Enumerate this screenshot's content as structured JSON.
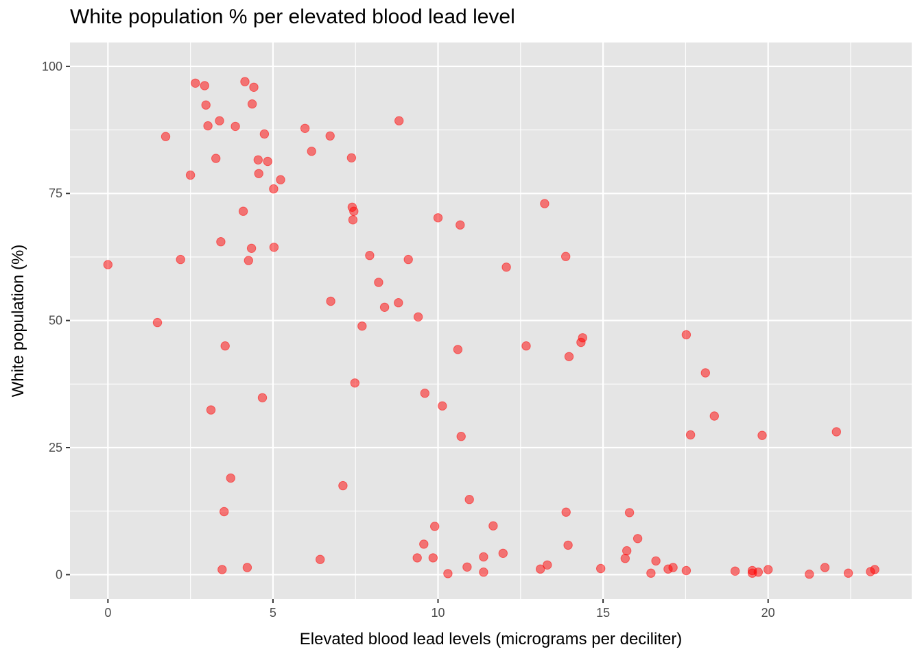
{
  "chart_data": {
    "type": "scatter",
    "title": "White population % per elevated blood lead level",
    "xlabel": "Elevated blood lead levels (micrograms per deciliter)",
    "ylabel": "White population (%)",
    "xlim": [
      -1.15,
      24.35
    ],
    "ylim": [
      -4.8,
      104.7
    ],
    "xticks": [
      0,
      5,
      10,
      15,
      20
    ],
    "yticks": [
      0,
      25,
      50,
      75,
      100
    ],
    "grid": true,
    "point_color": "#ff0000",
    "point_opacity": 0.5,
    "background": "#e5e5e5",
    "points": [
      [
        0.0,
        61.0
      ],
      [
        1.5,
        49.6
      ],
      [
        1.75,
        86.2
      ],
      [
        2.2,
        62.0
      ],
      [
        2.5,
        78.6
      ],
      [
        2.65,
        96.7
      ],
      [
        2.93,
        96.2
      ],
      [
        2.97,
        92.4
      ],
      [
        3.03,
        88.3
      ],
      [
        3.12,
        32.4
      ],
      [
        3.27,
        81.9
      ],
      [
        3.38,
        89.3
      ],
      [
        3.42,
        65.5
      ],
      [
        3.46,
        1.0
      ],
      [
        3.52,
        12.4
      ],
      [
        3.55,
        45.0
      ],
      [
        3.72,
        19.0
      ],
      [
        3.86,
        88.2
      ],
      [
        4.1,
        71.5
      ],
      [
        4.15,
        97.0
      ],
      [
        4.22,
        1.4
      ],
      [
        4.26,
        61.8
      ],
      [
        4.35,
        64.2
      ],
      [
        4.37,
        92.6
      ],
      [
        4.42,
        95.9
      ],
      [
        4.55,
        81.6
      ],
      [
        4.57,
        78.9
      ],
      [
        4.68,
        34.8
      ],
      [
        4.74,
        86.7
      ],
      [
        4.84,
        81.3
      ],
      [
        5.02,
        75.9
      ],
      [
        5.03,
        64.4
      ],
      [
        5.23,
        77.7
      ],
      [
        5.97,
        87.8
      ],
      [
        6.17,
        83.3
      ],
      [
        6.43,
        3.0
      ],
      [
        6.73,
        86.3
      ],
      [
        6.75,
        53.8
      ],
      [
        7.12,
        17.5
      ],
      [
        7.38,
        82.0
      ],
      [
        7.4,
        72.3
      ],
      [
        7.42,
        69.8
      ],
      [
        7.45,
        71.5
      ],
      [
        7.48,
        37.7
      ],
      [
        7.7,
        48.9
      ],
      [
        7.93,
        62.8
      ],
      [
        8.2,
        57.5
      ],
      [
        8.38,
        52.6
      ],
      [
        8.8,
        53.5
      ],
      [
        8.82,
        89.3
      ],
      [
        9.1,
        62.0
      ],
      [
        9.37,
        3.3
      ],
      [
        9.4,
        50.7
      ],
      [
        9.57,
        6.0
      ],
      [
        9.6,
        35.7
      ],
      [
        9.85,
        3.3
      ],
      [
        9.9,
        9.5
      ],
      [
        10.0,
        70.2
      ],
      [
        10.13,
        33.2
      ],
      [
        10.3,
        0.2
      ],
      [
        10.6,
        44.3
      ],
      [
        10.67,
        68.8
      ],
      [
        10.7,
        27.2
      ],
      [
        10.88,
        1.5
      ],
      [
        10.95,
        14.8
      ],
      [
        11.38,
        3.5
      ],
      [
        11.38,
        0.5
      ],
      [
        11.67,
        9.6
      ],
      [
        11.97,
        4.2
      ],
      [
        12.07,
        60.5
      ],
      [
        12.67,
        45.0
      ],
      [
        13.1,
        1.1
      ],
      [
        13.23,
        73.0
      ],
      [
        13.31,
        1.9
      ],
      [
        13.87,
        62.6
      ],
      [
        13.88,
        12.3
      ],
      [
        13.94,
        5.8
      ],
      [
        13.97,
        42.9
      ],
      [
        14.33,
        45.7
      ],
      [
        14.38,
        46.6
      ],
      [
        14.93,
        1.2
      ],
      [
        15.67,
        3.2
      ],
      [
        15.72,
        4.7
      ],
      [
        15.8,
        12.2
      ],
      [
        16.05,
        7.1
      ],
      [
        16.45,
        0.3
      ],
      [
        16.6,
        2.7
      ],
      [
        16.97,
        1.1
      ],
      [
        17.12,
        1.4
      ],
      [
        17.52,
        0.8
      ],
      [
        17.52,
        47.2
      ],
      [
        17.65,
        27.5
      ],
      [
        18.1,
        39.7
      ],
      [
        18.37,
        31.2
      ],
      [
        19.0,
        0.7
      ],
      [
        19.52,
        0.8
      ],
      [
        19.52,
        0.3
      ],
      [
        19.7,
        0.5
      ],
      [
        19.82,
        27.4
      ],
      [
        20.0,
        1.0
      ],
      [
        21.25,
        0.1
      ],
      [
        21.72,
        1.4
      ],
      [
        22.07,
        28.1
      ],
      [
        22.43,
        0.3
      ],
      [
        23.1,
        0.6
      ],
      [
        23.23,
        1.0
      ]
    ]
  }
}
